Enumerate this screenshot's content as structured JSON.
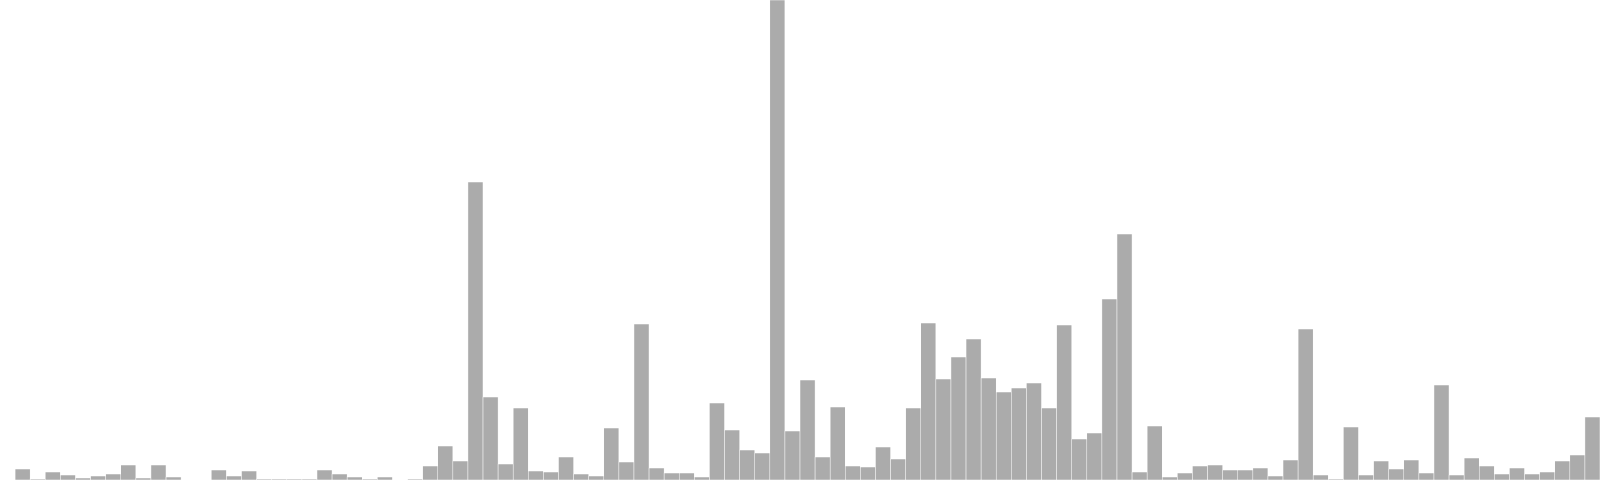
{
  "chart_data": {
    "type": "bar",
    "title": "",
    "xlabel": "",
    "ylabel": "",
    "grid": false,
    "legend": "none",
    "bar_color": "#ababab",
    "ylim": [
      0,
      480
    ],
    "values": [
      0,
      11,
      1,
      8,
      5,
      2,
      4,
      6,
      15,
      2,
      15,
      3,
      0,
      0,
      10,
      4,
      9,
      1,
      1,
      1,
      1,
      10,
      6,
      3,
      1,
      3,
      0,
      1,
      14,
      34,
      19,
      298,
      83,
      16,
      72,
      9,
      8,
      23,
      6,
      4,
      52,
      18,
      156,
      12,
      7,
      7,
      3,
      77,
      50,
      30,
      27,
      480,
      49,
      100,
      23,
      73,
      14,
      13,
      33,
      21,
      72,
      157,
      101,
      123,
      141,
      102,
      88,
      92,
      97,
      72,
      155,
      41,
      47,
      181,
      246,
      8,
      54,
      3,
      7,
      14,
      15,
      10,
      10,
      12,
      4,
      20,
      151,
      5,
      1,
      53,
      5,
      19,
      11,
      20,
      7,
      95,
      5,
      22,
      14,
      6,
      12,
      6,
      8,
      19,
      25,
      63
    ]
  }
}
